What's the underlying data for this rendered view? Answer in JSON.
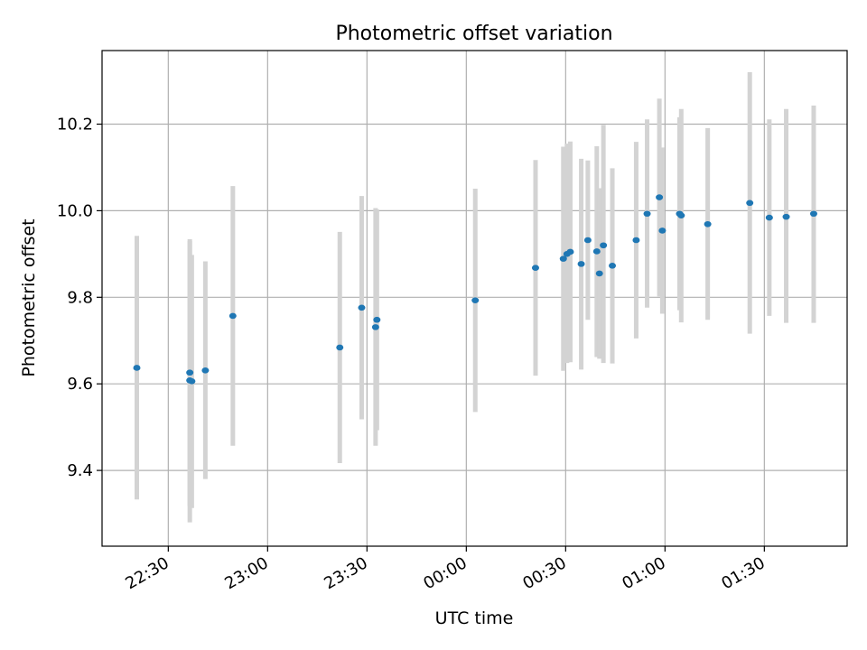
{
  "chart_data": {
    "type": "scatter",
    "title": "Photometric offset variation",
    "xlabel": "UTC time",
    "ylabel": "Photometric offset",
    "x_unit": "minutes relative to 00:00 UTC",
    "xlim": [
      -110,
      115
    ],
    "ylim": [
      9.225,
      10.37
    ],
    "grid": true,
    "x_ticks": [
      {
        "value": -90,
        "label": "22:30"
      },
      {
        "value": -60,
        "label": "23:00"
      },
      {
        "value": -30,
        "label": "23:30"
      },
      {
        "value": 0,
        "label": "00:00"
      },
      {
        "value": 30,
        "label": "00:30"
      },
      {
        "value": 60,
        "label": "01:00"
      },
      {
        "value": 90,
        "label": "01:30"
      }
    ],
    "y_ticks": [
      {
        "value": 9.4,
        "label": "9.4"
      },
      {
        "value": 9.6,
        "label": "9.6"
      },
      {
        "value": 9.8,
        "label": "9.8"
      },
      {
        "value": 10.0,
        "label": "10.0"
      },
      {
        "value": 10.2,
        "label": "10.2"
      }
    ],
    "series": [
      {
        "name": "offset",
        "color": "#1f77b4",
        "errorbar_color": "#d3d3d3",
        "points": [
          {
            "x": -99.5,
            "y": 9.637,
            "ylow": 9.333,
            "yhigh": 9.942
          },
          {
            "x": -83.5,
            "y": 9.626,
            "ylow": 9.318,
            "yhigh": 9.934
          },
          {
            "x": -83.5,
            "y": 9.608,
            "ylow": 9.28,
            "yhigh": 9.93
          },
          {
            "x": -82.9,
            "y": 9.606,
            "ylow": 9.313,
            "yhigh": 9.898
          },
          {
            "x": -78.8,
            "y": 9.631,
            "ylow": 9.38,
            "yhigh": 9.883
          },
          {
            "x": -70.5,
            "y": 9.757,
            "ylow": 9.457,
            "yhigh": 10.057
          },
          {
            "x": -38.2,
            "y": 9.684,
            "ylow": 9.417,
            "yhigh": 9.951
          },
          {
            "x": -31.6,
            "y": 9.776,
            "ylow": 9.518,
            "yhigh": 10.034
          },
          {
            "x": -27.0,
            "y": 9.748,
            "ylow": 9.493,
            "yhigh": 10.003
          },
          {
            "x": -27.4,
            "y": 9.731,
            "ylow": 9.457,
            "yhigh": 10.006
          },
          {
            "x": 2.7,
            "y": 9.793,
            "ylow": 9.535,
            "yhigh": 10.051
          },
          {
            "x": 20.9,
            "y": 9.868,
            "ylow": 9.619,
            "yhigh": 10.117
          },
          {
            "x": 29.3,
            "y": 9.889,
            "ylow": 9.63,
            "yhigh": 10.148
          },
          {
            "x": 30.4,
            "y": 9.9,
            "ylow": 9.648,
            "yhigh": 10.155
          },
          {
            "x": 31.4,
            "y": 9.905,
            "ylow": 9.65,
            "yhigh": 10.16
          },
          {
            "x": 34.7,
            "y": 9.877,
            "ylow": 9.633,
            "yhigh": 10.12
          },
          {
            "x": 36.7,
            "y": 9.932,
            "ylow": 9.748,
            "yhigh": 10.116
          },
          {
            "x": 39.4,
            "y": 9.906,
            "ylow": 9.662,
            "yhigh": 10.149
          },
          {
            "x": 40.2,
            "y": 9.855,
            "ylow": 9.658,
            "yhigh": 10.052
          },
          {
            "x": 41.4,
            "y": 9.92,
            "ylow": 9.648,
            "yhigh": 10.198
          },
          {
            "x": 44.1,
            "y": 9.873,
            "ylow": 9.647,
            "yhigh": 10.098
          },
          {
            "x": 51.3,
            "y": 9.932,
            "ylow": 9.705,
            "yhigh": 10.159
          },
          {
            "x": 54.6,
            "y": 9.993,
            "ylow": 9.776,
            "yhigh": 10.211
          },
          {
            "x": 58.3,
            "y": 10.031,
            "ylow": 9.802,
            "yhigh": 10.259
          },
          {
            "x": 59.2,
            "y": 9.954,
            "ylow": 9.762,
            "yhigh": 10.146
          },
          {
            "x": 64.4,
            "y": 9.993,
            "ylow": 9.77,
            "yhigh": 10.216
          },
          {
            "x": 64.9,
            "y": 9.989,
            "ylow": 9.742,
            "yhigh": 10.235
          },
          {
            "x": 72.9,
            "y": 9.969,
            "ylow": 9.748,
            "yhigh": 10.191
          },
          {
            "x": 85.6,
            "y": 10.018,
            "ylow": 9.716,
            "yhigh": 10.32
          },
          {
            "x": 91.5,
            "y": 9.984,
            "ylow": 9.757,
            "yhigh": 10.211
          },
          {
            "x": 96.6,
            "y": 9.986,
            "ylow": 9.741,
            "yhigh": 10.235
          },
          {
            "x": 104.9,
            "y": 9.993,
            "ylow": 9.741,
            "yhigh": 10.243
          }
        ]
      }
    ]
  }
}
